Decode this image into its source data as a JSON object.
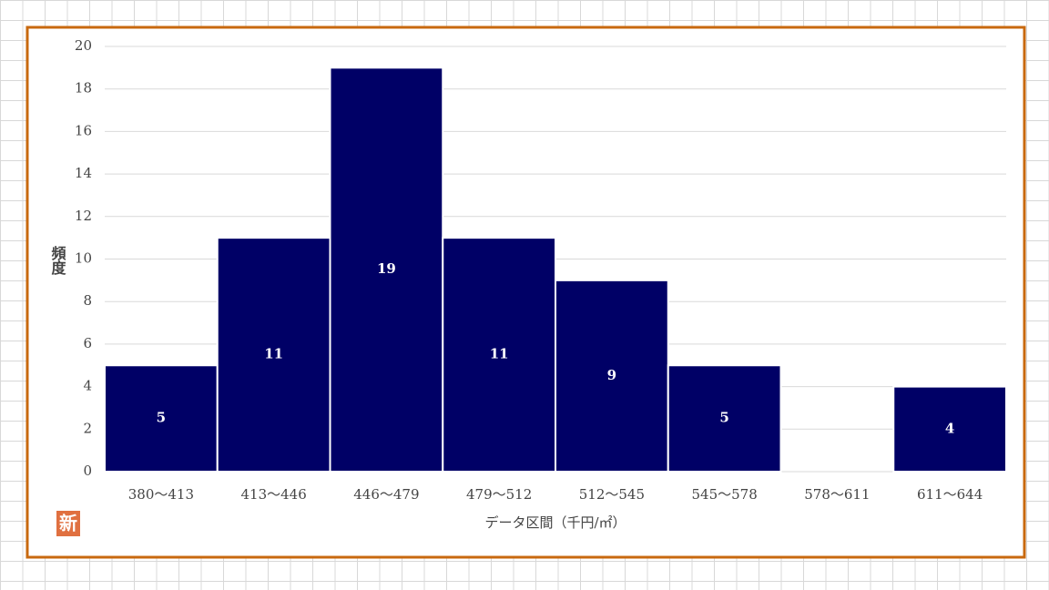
{
  "chart_data": {
    "type": "bar",
    "categories": [
      "380〜413",
      "413〜446",
      "446〜479",
      "479〜512",
      "512〜545",
      "545〜578",
      "578〜611",
      "611〜644"
    ],
    "values": [
      5,
      11,
      19,
      11,
      9,
      5,
      0,
      4
    ],
    "color": "#000066",
    "x_label": "データ区間（千円/㎡）",
    "y_label": "頻度",
    "ylim": [
      0,
      20
    ],
    "yticks": [
      0,
      2,
      4,
      6,
      8,
      10,
      12,
      14,
      16,
      18,
      20
    ],
    "grid": true
  },
  "badge": "新"
}
